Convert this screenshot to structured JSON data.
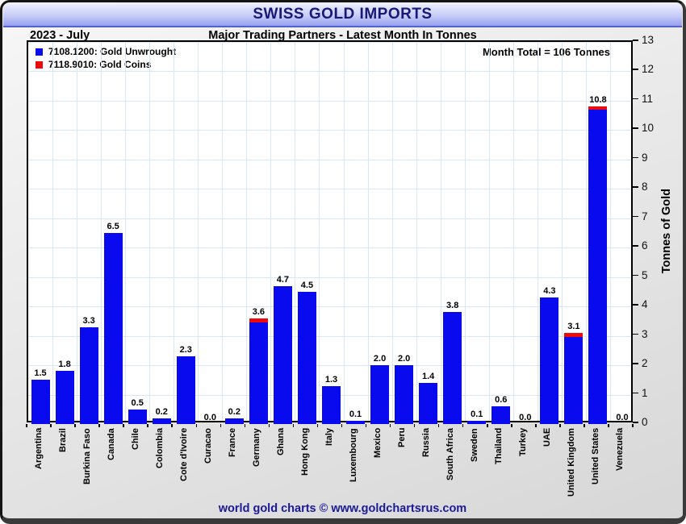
{
  "header": {
    "title": "SWISS GOLD IMPORTS",
    "period": "2023 - July",
    "subtitle": "Major Trading Partners - Latest Month In Tonnes"
  },
  "annotation": "Month Total = 106 Tonnes",
  "footer": "world gold charts © www.goldchartsrus.com",
  "colors": {
    "unwrought_blue": "#0a0aee",
    "coins_red": "#ee0a0a",
    "title_navy": "#181878",
    "footer_navy": "#1a1a99",
    "gridline": "#d9e6f4"
  },
  "chart_data": {
    "type": "bar",
    "stacked": true,
    "title": "SWISS GOLD IMPORTS",
    "subtitle": "Major Trading Partners - Latest Month In Tonnes",
    "period": "2023 - July",
    "ylabel": "Tonnes of Gold",
    "ylim": [
      0,
      13
    ],
    "yticks": [
      0,
      1,
      2,
      3,
      4,
      5,
      6,
      7,
      8,
      9,
      10,
      11,
      12,
      13
    ],
    "grid": true,
    "legend_position": "top-left",
    "categories": [
      "Argentina",
      "Brazil",
      "Burkina Faso",
      "Canada",
      "Chile",
      "Colombia",
      "Cote d'Ivoire",
      "Curacao",
      "France",
      "Germany",
      "Ghana",
      "Hong Kong",
      "Italy",
      "Luxembourg",
      "Mexico",
      "Peru",
      "Russia",
      "South Africa",
      "Sweden",
      "Thailand",
      "Turkey",
      "UAE",
      "United Kingdom",
      "United States",
      "Venezuela"
    ],
    "series": [
      {
        "name": "7108.1200: Gold Unwrought",
        "color": "#0a0aee",
        "values": [
          1.5,
          1.8,
          3.3,
          6.5,
          0.5,
          0.2,
          2.3,
          0.0,
          0.2,
          3.45,
          4.7,
          4.5,
          1.3,
          0.1,
          2.0,
          2.0,
          1.4,
          3.8,
          0.1,
          0.6,
          0.0,
          4.3,
          2.95,
          10.7,
          0.0
        ]
      },
      {
        "name": "7118.9010: Gold Coins",
        "color": "#ee0a0a",
        "values": [
          0,
          0,
          0,
          0,
          0,
          0,
          0,
          0,
          0,
          0.15,
          0,
          0,
          0,
          0,
          0,
          0,
          0,
          0,
          0,
          0,
          0,
          0,
          0.15,
          0.1,
          0
        ]
      }
    ],
    "totals": [
      1.5,
      1.8,
      3.3,
      6.5,
      0.5,
      0.2,
      2.3,
      0.0,
      0.2,
      3.6,
      4.7,
      4.5,
      1.3,
      0.1,
      2.0,
      2.0,
      1.4,
      3.8,
      0.1,
      0.6,
      0.0,
      4.3,
      3.1,
      10.8,
      0.0
    ],
    "bar_labels": [
      "1.5",
      "1.8",
      "3.3",
      "6.5",
      "0.5",
      "0.2",
      "2.3",
      "0.0",
      "0.2",
      "3.6",
      "4.7",
      "4.5",
      "1.3",
      "0.1",
      "2.0",
      "2.0",
      "1.4",
      "3.8",
      "0.1",
      "0.6",
      "0.0",
      "4.3",
      "3.1",
      "10.8",
      "0.0"
    ],
    "annotation": "Month Total = 106 Tonnes"
  },
  "legend": [
    {
      "label": "7108.1200: Gold Unwrought",
      "color": "#0a0aee"
    },
    {
      "label": "7118.9010: Gold Coins",
      "color": "#ee0a0a"
    }
  ]
}
